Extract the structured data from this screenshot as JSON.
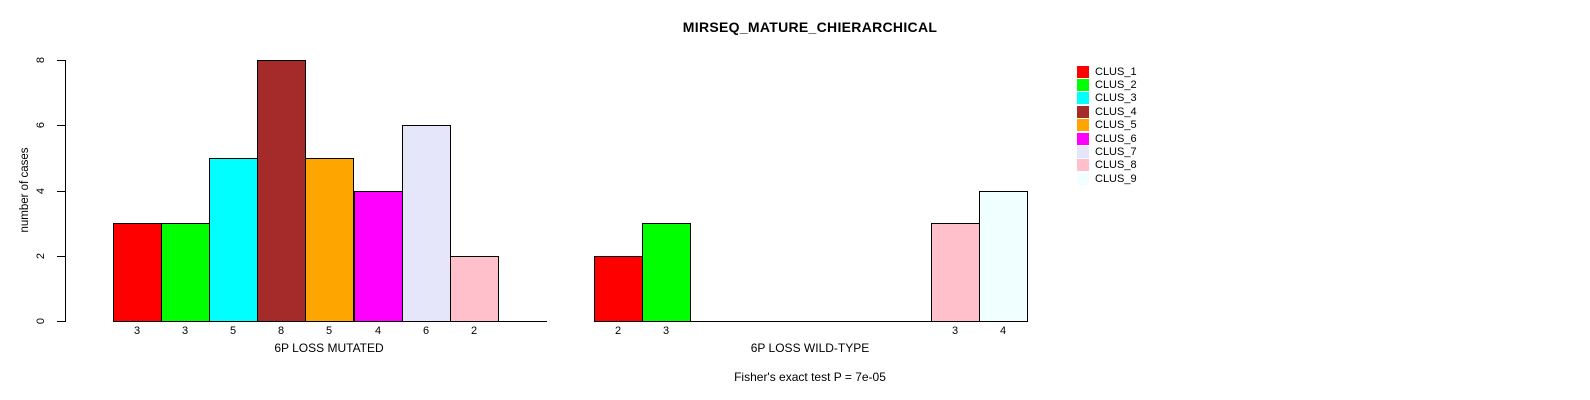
{
  "chart_data": {
    "type": "bar",
    "title": "MIRSEQ_MATURE_CHIERARCHICAL",
    "ylabel": "number of cases",
    "ylim": [
      0,
      8
    ],
    "yticks": [
      0,
      2,
      4,
      6,
      8
    ],
    "grid": false,
    "legend_position": "right",
    "legend": [
      {
        "name": "CLUS_1",
        "color": "#FF0000"
      },
      {
        "name": "CLUS_2",
        "color": "#00FF00"
      },
      {
        "name": "CLUS_3",
        "color": "#00FFFF"
      },
      {
        "name": "CLUS_4",
        "color": "#A52A2A"
      },
      {
        "name": "CLUS_5",
        "color": "#FFA500"
      },
      {
        "name": "CLUS_6",
        "color": "#FF00FF"
      },
      {
        "name": "CLUS_7",
        "color": "#E6E6FA"
      },
      {
        "name": "CLUS_8",
        "color": "#FFC0CB"
      },
      {
        "name": "CLUS_9",
        "color": "#F0FFFF"
      }
    ],
    "groups": [
      {
        "label": "6P LOSS MUTATED",
        "values": [
          3,
          3,
          5,
          8,
          5,
          4,
          6,
          2,
          0
        ]
      },
      {
        "label": "6P LOSS WILD-TYPE",
        "values": [
          2,
          3,
          0,
          0,
          0,
          0,
          0,
          3,
          4
        ]
      }
    ],
    "annotation": "Fisher's exact test P = 7e-05"
  }
}
